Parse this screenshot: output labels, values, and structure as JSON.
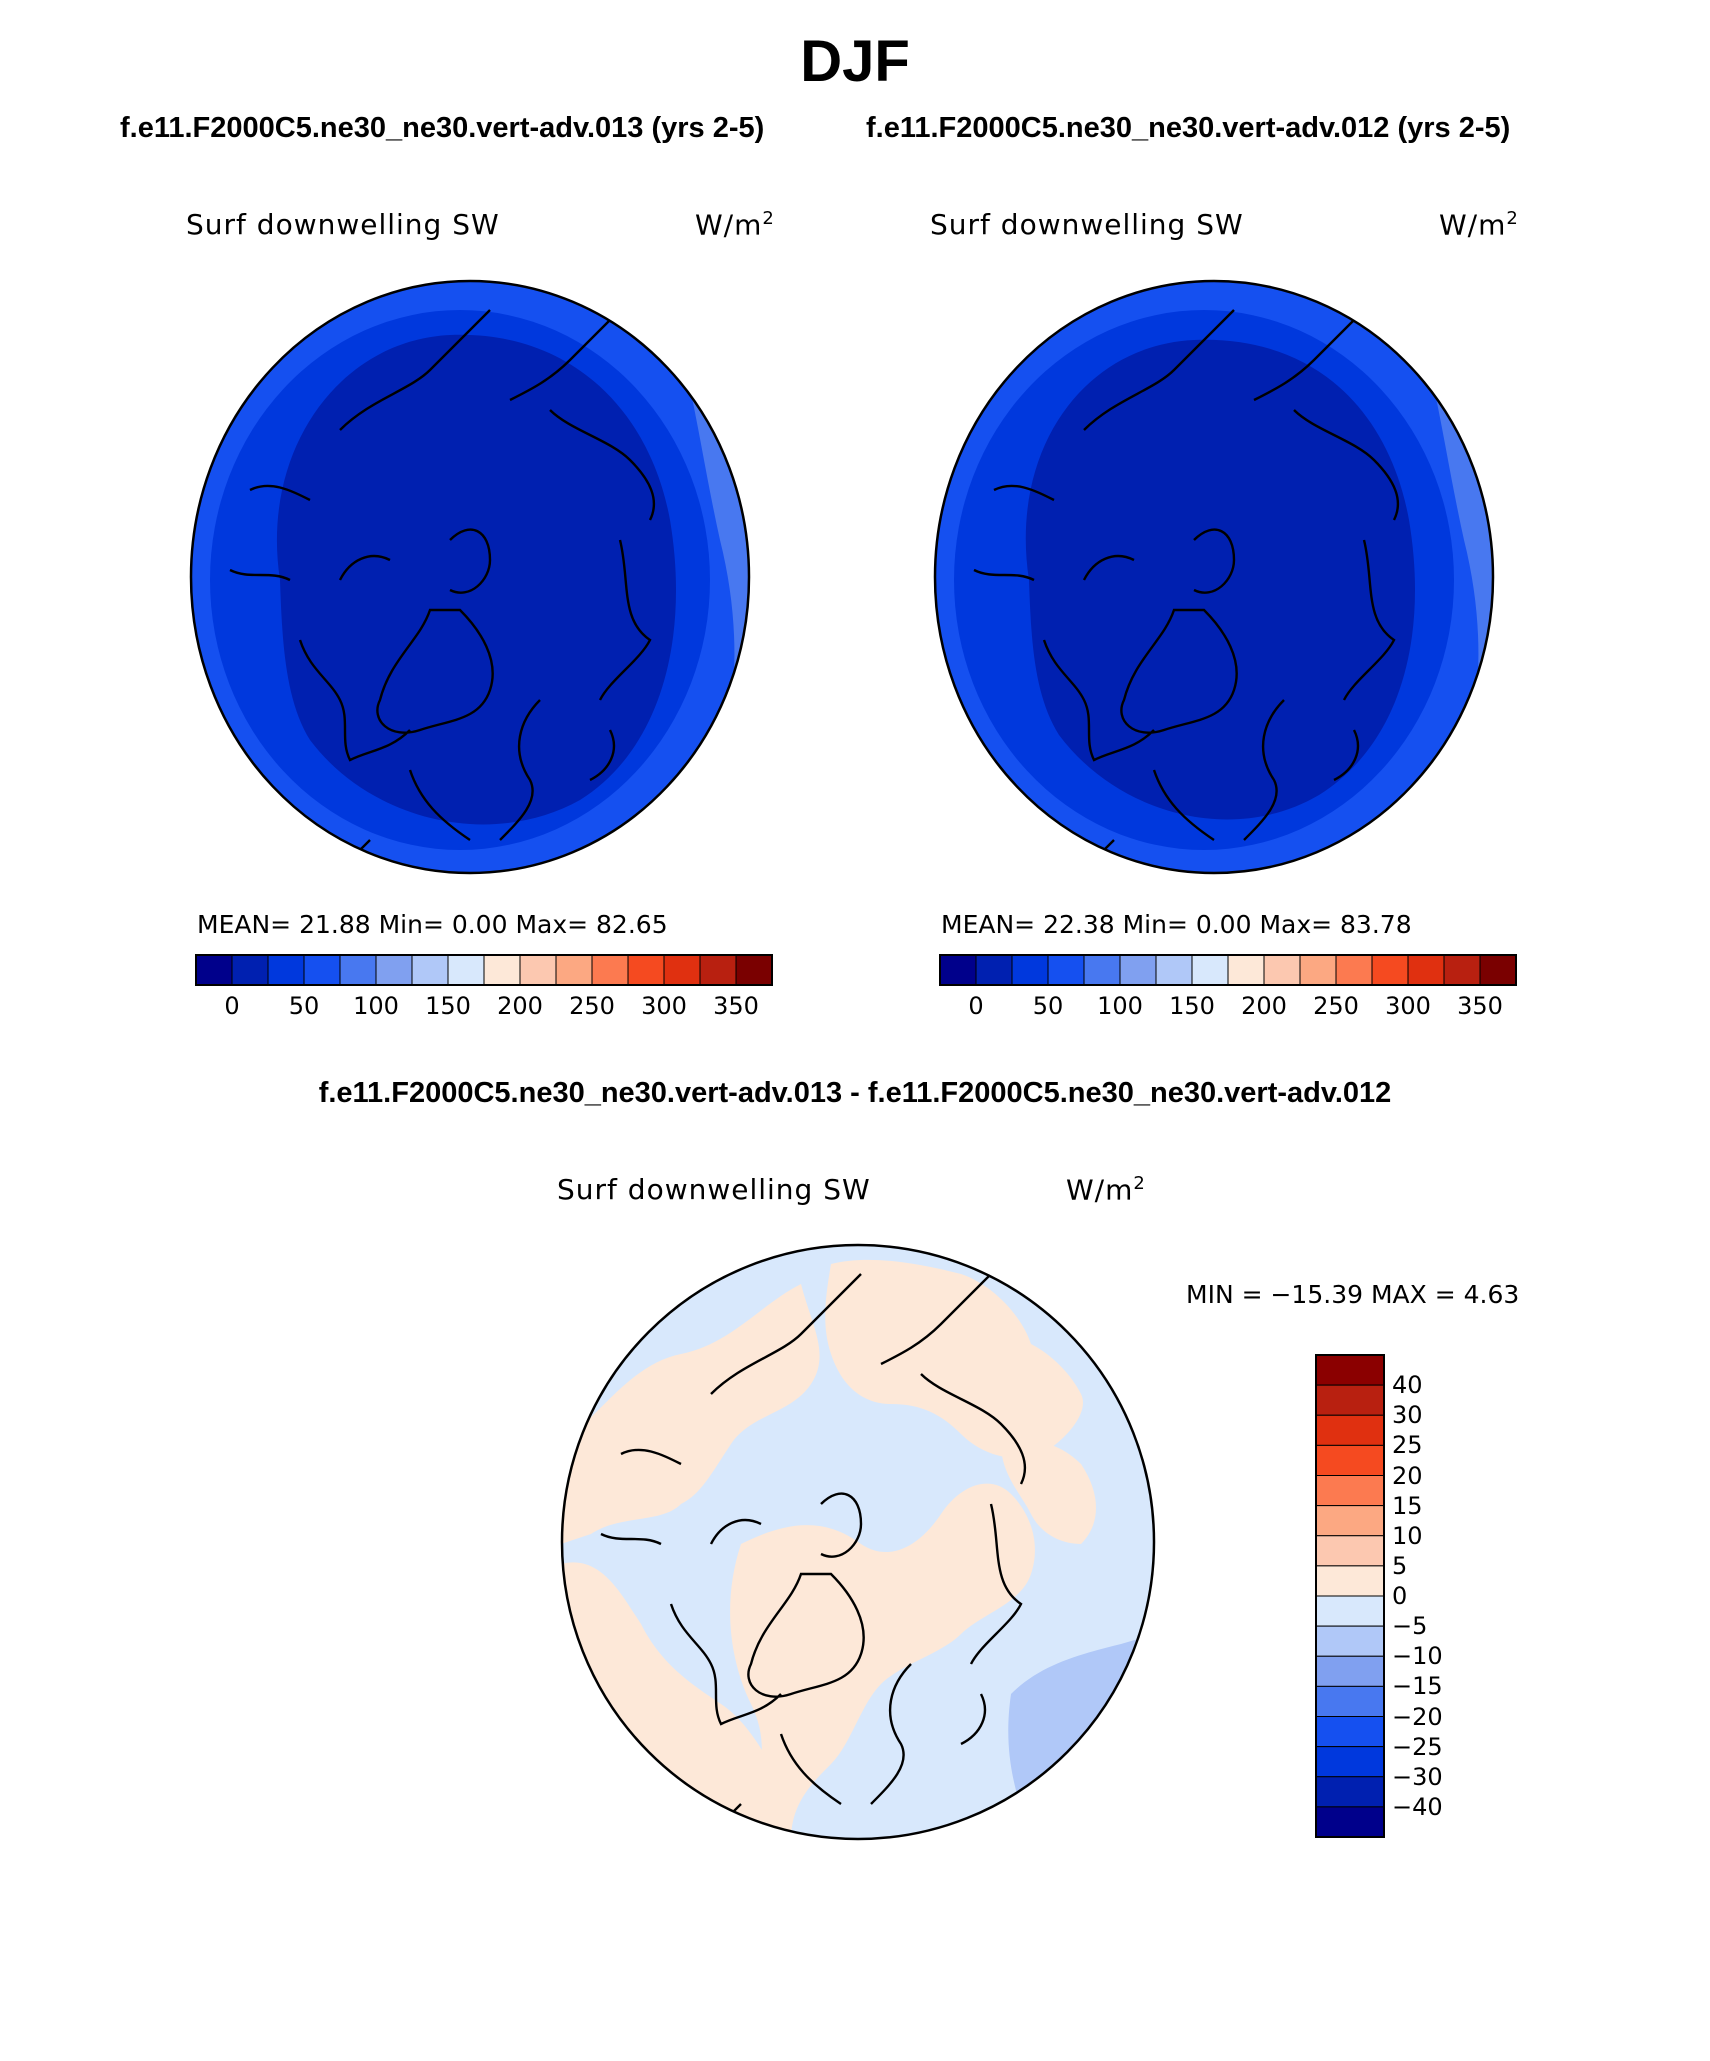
{
  "figure": {
    "title": "DJF",
    "subtitle_left": "f.e11.F2000C5.ne30_ne30.vert-adv.013 (yrs 2-5)",
    "subtitle_right": "f.e11.F2000C5.ne30_ne30.vert-adv.012 (yrs 2-5)",
    "diff_title": "f.e11.F2000C5.ne30_ne30.vert-adv.013 - f.e11.F2000C5.ne30_ne30.vert-adv.012"
  },
  "panels": [
    {
      "variable": "Surf downwelling SW",
      "units_base": "W/m",
      "units_exp": "2",
      "stats_text": "MEAN=   21.88   Min=     0.00   Max=   82.65"
    },
    {
      "variable": "Surf downwelling SW",
      "units_base": "W/m",
      "units_exp": "2",
      "stats_text": "MEAN=   22.38   Min=     0.00   Max=   83.78"
    },
    {
      "variable": "Surf downwelling SW",
      "units_base": "W/m",
      "units_exp": "2",
      "stats_text": "MIN = −15.39  MAX =    4.63"
    }
  ],
  "colorbar_abs": {
    "colors": [
      "#00008b",
      "#0020b0",
      "#0038dd",
      "#1550f0",
      "#4878f0",
      "#80a0f0",
      "#b0c8f8",
      "#d8e8fc",
      "#fde8d8",
      "#fcc8b0",
      "#fca882",
      "#fc7a50",
      "#f54a20",
      "#e03010",
      "#b82010",
      "#7a0000"
    ],
    "tick_labels": [
      "0",
      "50",
      "100",
      "150",
      "200",
      "250",
      "300",
      "350"
    ]
  },
  "colorbar_diff": {
    "colors": [
      "#8b0000",
      "#b82010",
      "#e03010",
      "#f54a20",
      "#fc7a50",
      "#fca882",
      "#fcc8b0",
      "#fde8d8",
      "#d8e8fc",
      "#b0c8f8",
      "#80a0f0",
      "#4878f0",
      "#1550f0",
      "#0038dd",
      "#0020b0",
      "#00008b"
    ],
    "tick_labels": [
      "40",
      "30",
      "25",
      "20",
      "15",
      "10",
      "5",
      "0",
      "−5",
      "−10",
      "−15",
      "−20",
      "−25",
      "−30",
      "−40"
    ]
  },
  "map_colors": {
    "abs_outer": "#1550f0",
    "abs_mid": "#0038dd",
    "abs_inner": "#0020b0",
    "abs_edge_light": "#4878f0",
    "diff_pos": "#fde8d8",
    "diff_neg": "#d8e8fc",
    "diff_neg2": "#b0c8f8"
  }
}
